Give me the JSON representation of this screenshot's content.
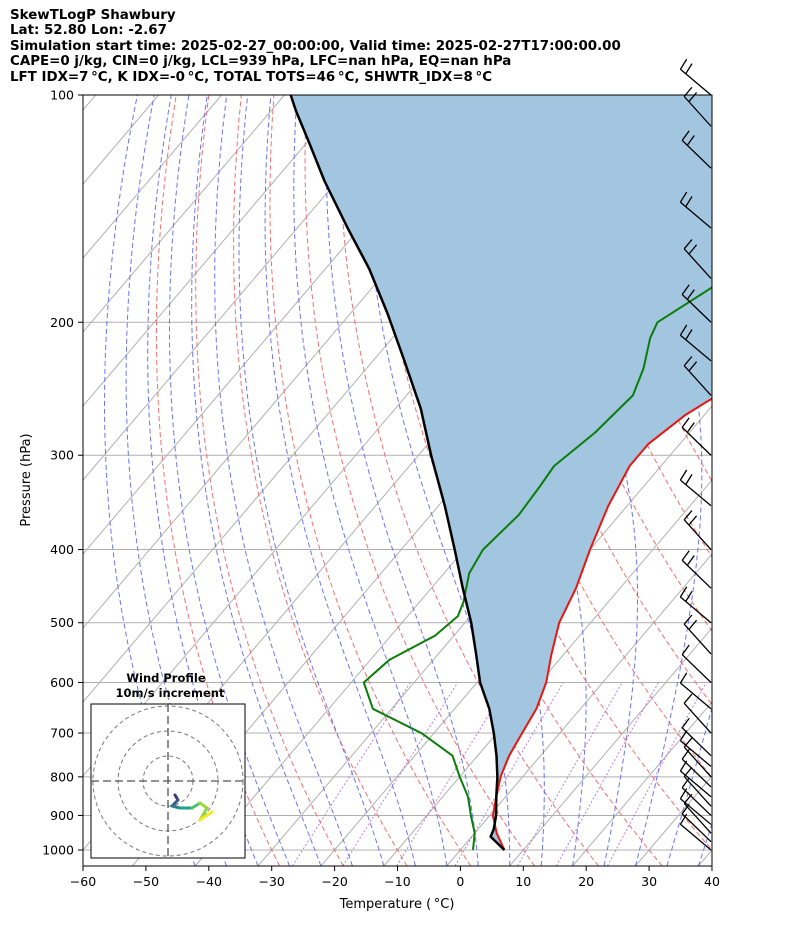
{
  "header": {
    "line1": "SkewTLogP Shawbury",
    "line2": "Lat: 52.80   Lon: -2.67",
    "line3": "Simulation start time: 2025-02-27_00:00:00, Valid time: 2025-02-27T17:00:00.00",
    "line4": "CAPE=0 j/kg, CIN=0 j/kg, LCL=939 hPa, LFC=nan hPa, EQ=nan hPa",
    "line5": "LFT IDX=7 °C, K IDX=-0 °C, TOTAL TOTS=46 °C, SHWTR_IDX=8 °C"
  },
  "chart_data": {
    "type": "skew-t",
    "xlabel": "Temperature ( °C)",
    "ylabel": "Pressure (hPa)",
    "xlim": [
      -60,
      40
    ],
    "ylim": [
      1050,
      100
    ],
    "xticks": [
      "−60",
      "−50",
      "−40",
      "−30",
      "−20",
      "−10",
      "0",
      "10",
      "20",
      "30",
      "40"
    ],
    "yticks": [
      100,
      200,
      300,
      400,
      500,
      600,
      700,
      800,
      900,
      1000
    ],
    "colors": {
      "temperature": "#e8160e",
      "dewpoint": "#0a7d0a",
      "parcel": "#000000",
      "cin_cape_fill": "#a3c6e0",
      "isotherm": "#b0b0b0",
      "dry_adiabat": "#f07070",
      "moist_adiabat": "#6b75f0",
      "mixing_ratio": "#9b4fc9"
    },
    "series": [
      {
        "id": "temperature",
        "points": [
          [
            7,
            1000
          ],
          [
            3.5,
            950
          ],
          [
            0.5,
            900
          ],
          [
            -1.5,
            850
          ],
          [
            -3.5,
            800
          ],
          [
            -5,
            750
          ],
          [
            -6,
            700
          ],
          [
            -7,
            650
          ],
          [
            -9,
            600
          ],
          [
            -12,
            550
          ],
          [
            -15,
            500
          ],
          [
            -17,
            450
          ],
          [
            -20,
            400
          ],
          [
            -23,
            350
          ],
          [
            -25,
            310
          ],
          [
            -25,
            290
          ],
          [
            -23,
            265
          ],
          [
            -19,
            240
          ],
          [
            -14,
            215
          ],
          [
            -10,
            195
          ],
          [
            -8,
            180
          ],
          [
            -6,
            160
          ],
          [
            -4,
            140
          ],
          [
            -1,
            120
          ],
          [
            2,
            100
          ]
        ]
      },
      {
        "id": "dewpoint",
        "points": [
          [
            2,
            1000
          ],
          [
            0,
            950
          ],
          [
            -3,
            900
          ],
          [
            -6,
            850
          ],
          [
            -10,
            800
          ],
          [
            -14,
            750
          ],
          [
            -22,
            700
          ],
          [
            -33,
            650
          ],
          [
            -38,
            600
          ],
          [
            -37,
            560
          ],
          [
            -33,
            520
          ],
          [
            -32,
            490
          ],
          [
            -33,
            470
          ],
          [
            -36,
            430
          ],
          [
            -37,
            400
          ],
          [
            -36,
            360
          ],
          [
            -36.5,
            330
          ],
          [
            -37,
            310
          ],
          [
            -35,
            280
          ],
          [
            -34,
            250
          ],
          [
            -36,
            230
          ],
          [
            -39,
            210
          ],
          [
            -40,
            200
          ],
          [
            -35,
            175
          ],
          [
            -26,
            140
          ],
          [
            -16,
            100
          ]
        ]
      },
      {
        "id": "parcel",
        "points": [
          [
            7,
            1000
          ],
          [
            3,
            960
          ],
          [
            2.5,
            939
          ],
          [
            1,
            900
          ],
          [
            -1.5,
            850
          ],
          [
            -4,
            800
          ],
          [
            -7,
            750
          ],
          [
            -10.5,
            700
          ],
          [
            -14.5,
            650
          ],
          [
            -19.5,
            600
          ],
          [
            -24,
            550
          ],
          [
            -29,
            500
          ],
          [
            -35,
            450
          ],
          [
            -41.5,
            400
          ],
          [
            -49,
            350
          ],
          [
            -58,
            300
          ],
          [
            -66,
            260
          ],
          [
            -75,
            225
          ],
          [
            -84,
            195
          ],
          [
            -93,
            170
          ],
          [
            -102,
            150
          ],
          [
            -112,
            130
          ],
          [
            -120,
            115
          ],
          [
            -126,
            105
          ],
          [
            -129,
            100
          ]
        ]
      }
    ],
    "wind_barbs_pressure": [
      1000,
      975,
      950,
      925,
      900,
      875,
      850,
      825,
      800,
      775,
      750,
      700,
      650,
      600,
      550,
      500,
      450,
      400,
      350,
      300,
      250,
      225,
      200,
      175,
      150,
      125,
      110,
      100
    ],
    "inset": {
      "title_line1": "Wind Profile",
      "title_line2": "10m/s increment"
    }
  }
}
